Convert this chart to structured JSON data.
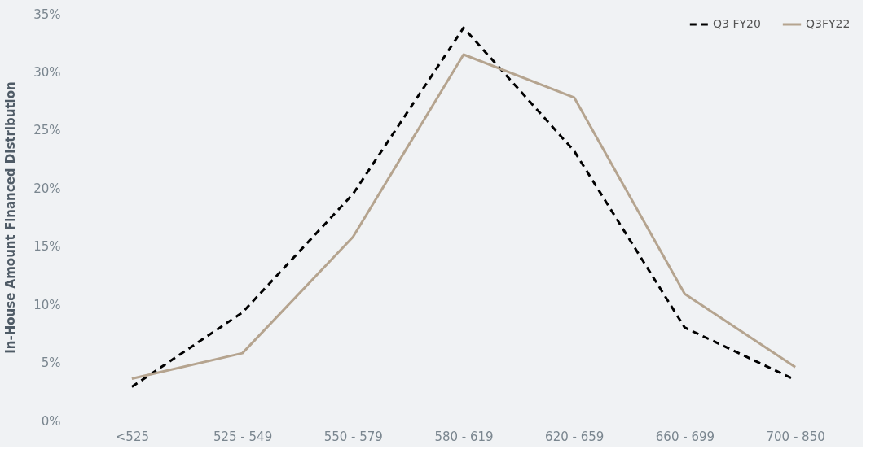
{
  "chart_data": {
    "type": "line",
    "ylabel": "In-House Amount  Financed Distribution",
    "categories": [
      "<525",
      "525 - 549",
      "550 - 579",
      "580 - 619",
      "620 - 659",
      "660 - 699",
      "700 - 850"
    ],
    "series": [
      {
        "name": "Q3 FY20",
        "color": "#000000",
        "line_style": "dashed",
        "values": [
          2.9,
          9.3,
          19.5,
          33.8,
          23.2,
          8.0,
          3.5
        ]
      },
      {
        "name": "Q3FY22",
        "color": "#b5a48f",
        "line_style": "solid",
        "values": [
          3.6,
          5.8,
          15.8,
          31.5,
          27.8,
          10.9,
          4.6
        ]
      }
    ],
    "ylim": [
      0,
      35
    ],
    "yticks": [
      {
        "value": 0,
        "label": "0%"
      },
      {
        "value": 5,
        "label": "5%"
      },
      {
        "value": 10,
        "label": "10%"
      },
      {
        "value": 15,
        "label": "15%"
      },
      {
        "value": 20,
        "label": "20%"
      },
      {
        "value": 25,
        "label": "25%"
      },
      {
        "value": 30,
        "label": "30%"
      },
      {
        "value": 35,
        "label": "35%"
      }
    ],
    "grid": false,
    "legend": "top right",
    "marker": "none"
  }
}
